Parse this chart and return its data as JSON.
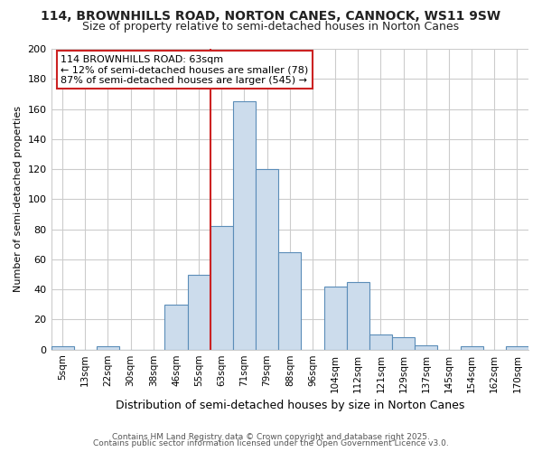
{
  "title_line1": "114, BROWNHILLS ROAD, NORTON CANES, CANNOCK, WS11 9SW",
  "title_line2": "Size of property relative to semi-detached houses in Norton Canes",
  "xlabel": "Distribution of semi-detached houses by size in Norton Canes",
  "ylabel": "Number of semi-detached properties",
  "footer_line1": "Contains HM Land Registry data © Crown copyright and database right 2025.",
  "footer_line2": "Contains public sector information licensed under the Open Government Licence v3.0.",
  "categories": [
    "5sqm",
    "13sqm",
    "22sqm",
    "30sqm",
    "38sqm",
    "46sqm",
    "55sqm",
    "63sqm",
    "71sqm",
    "79sqm",
    "88sqm",
    "96sqm",
    "104sqm",
    "112sqm",
    "121sqm",
    "129sqm",
    "137sqm",
    "145sqm",
    "154sqm",
    "162sqm",
    "170sqm"
  ],
  "values": [
    2,
    0,
    2,
    0,
    0,
    30,
    50,
    82,
    165,
    120,
    65,
    0,
    42,
    45,
    10,
    8,
    3,
    0,
    2,
    0,
    2
  ],
  "bar_color": "#ccdcec",
  "bar_edge_color": "#5b8db8",
  "annotation_title": "114 BROWNHILLS ROAD: 63sqm",
  "annotation_line1": "← 12% of semi-detached houses are smaller (78)",
  "annotation_line2": "87% of semi-detached houses are larger (545) →",
  "annotation_box_facecolor": "#ffffff",
  "annotation_border_color": "#cc2222",
  "vline_color": "#cc2222",
  "vline_x_index": 7,
  "ylim": [
    0,
    200
  ],
  "yticks": [
    0,
    20,
    40,
    60,
    80,
    100,
    120,
    140,
    160,
    180,
    200
  ],
  "background_color": "#ffffff",
  "grid_color": "#cccccc",
  "title_fontsize": 10,
  "subtitle_fontsize": 9
}
